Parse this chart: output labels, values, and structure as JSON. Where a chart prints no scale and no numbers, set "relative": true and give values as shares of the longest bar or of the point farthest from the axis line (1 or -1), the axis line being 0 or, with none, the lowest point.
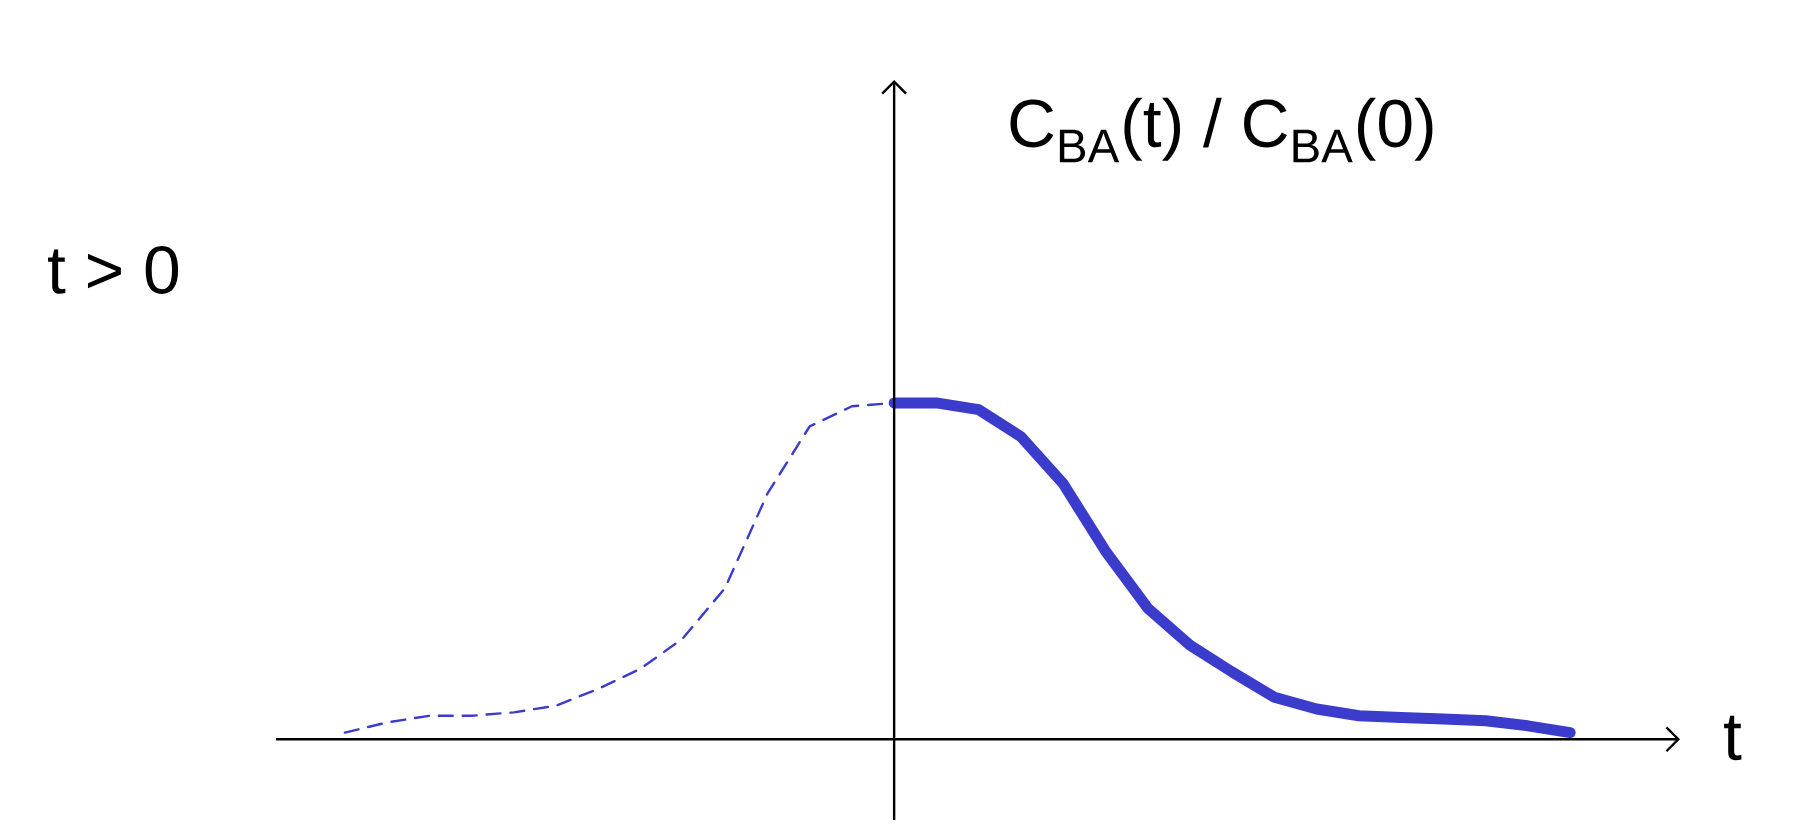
{
  "chart_data": {
    "type": "line",
    "relative": true,
    "xlabel": "t",
    "ylabel": "C$_{BA}$(t) / C$_{BA}$(0)",
    "annotations": [
      "t > 0"
    ],
    "marker": "none",
    "categories": [
      null,
      null,
      null,
      null,
      null,
      null,
      null,
      null,
      null,
      null,
      null,
      null,
      null,
      null,
      null,
      null,
      null,
      null,
      null,
      null,
      null,
      null,
      null,
      null,
      null,
      null,
      null,
      null,
      null,
      null
    ],
    "series": [
      {
        "color": "#3b3bcc",
        "line_style": "dashed",
        "values": [
          0.02,
          0.05,
          0.07,
          0.07,
          0.08,
          0.1,
          0.15,
          0.21,
          0.3,
          0.45,
          0.73,
          0.93,
          0.99,
          1.0,
          null,
          null,
          null,
          null,
          null,
          null,
          null,
          null,
          null,
          null,
          null,
          null,
          null,
          null,
          null,
          null
        ]
      },
      {
        "color": "#3b3bcc",
        "line_style": "solid",
        "values": [
          null,
          null,
          null,
          null,
          null,
          null,
          null,
          null,
          null,
          null,
          null,
          null,
          null,
          1.0,
          1.0,
          0.98,
          0.9,
          0.76,
          0.56,
          0.39,
          0.28,
          0.2,
          0.125,
          0.09,
          0.07,
          0.065,
          0.06,
          0.055,
          0.04,
          0.02
        ]
      }
    ]
  }
}
